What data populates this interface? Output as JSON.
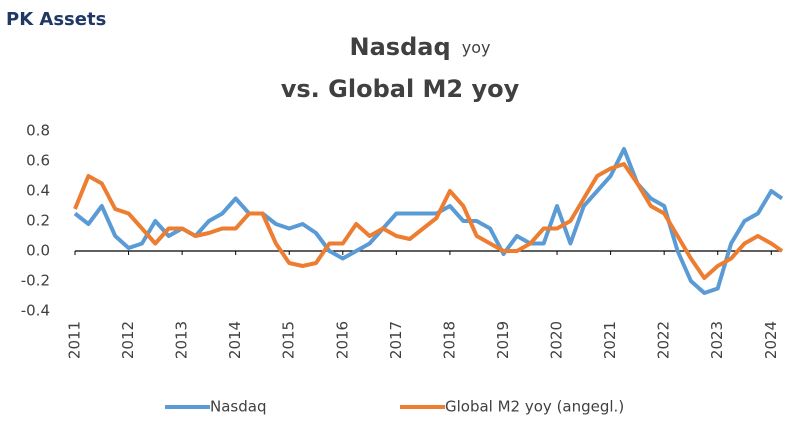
{
  "chart_data": {
    "type": "line",
    "source": "PK Assets",
    "title": {
      "main": "Nasdaq",
      "small": "yoy",
      "line2": "vs. Global M2 yoy"
    },
    "x": [
      2011.0,
      2011.25,
      2011.5,
      2011.75,
      2012.0,
      2012.25,
      2012.5,
      2012.75,
      2013.0,
      2013.25,
      2013.5,
      2013.75,
      2014.0,
      2014.25,
      2014.5,
      2014.75,
      2015.0,
      2015.25,
      2015.5,
      2015.75,
      2016.0,
      2016.25,
      2016.5,
      2016.75,
      2017.0,
      2017.25,
      2017.5,
      2017.75,
      2018.0,
      2018.25,
      2018.5,
      2018.75,
      2019.0,
      2019.25,
      2019.5,
      2019.75,
      2020.0,
      2020.25,
      2020.5,
      2020.75,
      2021.0,
      2021.25,
      2021.5,
      2021.75,
      2022.0,
      2022.25,
      2022.5,
      2022.75,
      2023.0,
      2023.25,
      2023.5,
      2023.75,
      2024.0,
      2024.2
    ],
    "series": [
      {
        "name": "Nasdaq",
        "color": "#5b9bd5",
        "values": [
          0.25,
          0.18,
          0.3,
          0.1,
          0.02,
          0.05,
          0.2,
          0.1,
          0.15,
          0.1,
          0.2,
          0.25,
          0.35,
          0.25,
          0.25,
          0.18,
          0.15,
          0.18,
          0.12,
          0.0,
          -0.05,
          0.0,
          0.05,
          0.15,
          0.25,
          0.25,
          0.25,
          0.25,
          0.3,
          0.2,
          0.2,
          0.15,
          -0.02,
          0.1,
          0.05,
          0.05,
          0.3,
          0.05,
          0.3,
          0.4,
          0.5,
          0.68,
          0.45,
          0.35,
          0.3,
          0.0,
          -0.2,
          -0.28,
          -0.25,
          0.05,
          0.2,
          0.25,
          0.4,
          0.35
        ]
      },
      {
        "name": "Global M2 yoy (angegl.)",
        "color": "#ed7d31",
        "values": [
          0.28,
          0.5,
          0.45,
          0.28,
          0.25,
          0.15,
          0.05,
          0.15,
          0.15,
          0.1,
          0.12,
          0.15,
          0.15,
          0.25,
          0.25,
          0.05,
          -0.08,
          -0.1,
          -0.08,
          0.05,
          0.05,
          0.18,
          0.1,
          0.15,
          0.1,
          0.08,
          0.15,
          0.22,
          0.4,
          0.3,
          0.1,
          0.05,
          0.0,
          0.0,
          0.05,
          0.15,
          0.15,
          0.2,
          0.35,
          0.5,
          0.55,
          0.58,
          0.45,
          0.3,
          0.25,
          0.1,
          -0.05,
          -0.18,
          -0.1,
          -0.05,
          0.05,
          0.1,
          0.05,
          0.0
        ]
      }
    ],
    "xlim": [
      2011,
      2024.2
    ],
    "xticks": [
      2011,
      2012,
      2013,
      2014,
      2015,
      2016,
      2017,
      2018,
      2019,
      2020,
      2021,
      2022,
      2023,
      2024
    ],
    "ylim": [
      -0.4,
      0.8
    ],
    "yticks": [
      0.8,
      0.6,
      0.4,
      0.2,
      {
        "value": 0,
        "label": "0.0"
      },
      -0.2,
      -0.4
    ],
    "legend": "bottom"
  }
}
